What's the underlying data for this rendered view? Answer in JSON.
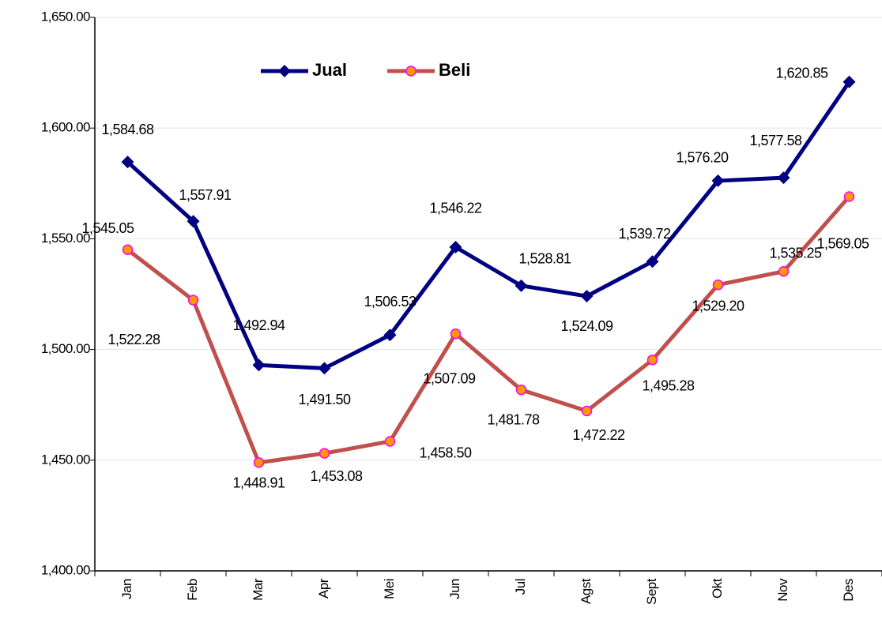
{
  "chart_data": {
    "type": "line",
    "categories": [
      "Jan",
      "Feb",
      "Mar",
      "Apr",
      "Mei",
      "Jun",
      "Jul",
      "Agst",
      "Sept",
      "Okt",
      "Nov",
      "Des"
    ],
    "series": [
      {
        "name": "Jual",
        "color": "#000080",
        "values": [
          1584.68,
          1557.91,
          1492.94,
          1491.5,
          1506.53,
          1546.22,
          1528.81,
          1524.09,
          1539.72,
          1576.2,
          1577.58,
          1620.85
        ],
        "value_labels": [
          "1,584.68",
          "1,557.91",
          "1,492.94",
          "1,491.50",
          "1,506.53",
          "1,546.22",
          "1,528.81",
          "1,524.09",
          "1,539.72",
          "1,576.20",
          "1,577.58",
          "1,620.85"
        ]
      },
      {
        "name": "Beli",
        "color": "#c0504d",
        "values": [
          1545.05,
          1522.28,
          1448.91,
          1453.08,
          1458.5,
          1507.09,
          1481.78,
          1472.22,
          1495.28,
          1529.2,
          1535.25,
          1569.05
        ],
        "value_labels": [
          "1,545.05",
          "1,522.28",
          "1,448.91",
          "1,453.08",
          "1,458.50",
          "1,507.09",
          "1,481.78",
          "1,472.22",
          "1,495.28",
          "1,529.20",
          "1,535.25",
          "1,569.05"
        ]
      }
    ],
    "ylim": [
      1400,
      1650
    ],
    "yticks": [
      {
        "value": 1400,
        "label": "1,400.00"
      },
      {
        "value": 1450,
        "label": "1,450.00"
      },
      {
        "value": 1500,
        "label": "1,500.00"
      },
      {
        "value": 1550,
        "label": "1,550.00"
      },
      {
        "value": 1600,
        "label": "1,600.00"
      },
      {
        "value": 1650,
        "label": "1,650.00"
      }
    ],
    "grid": true
  }
}
